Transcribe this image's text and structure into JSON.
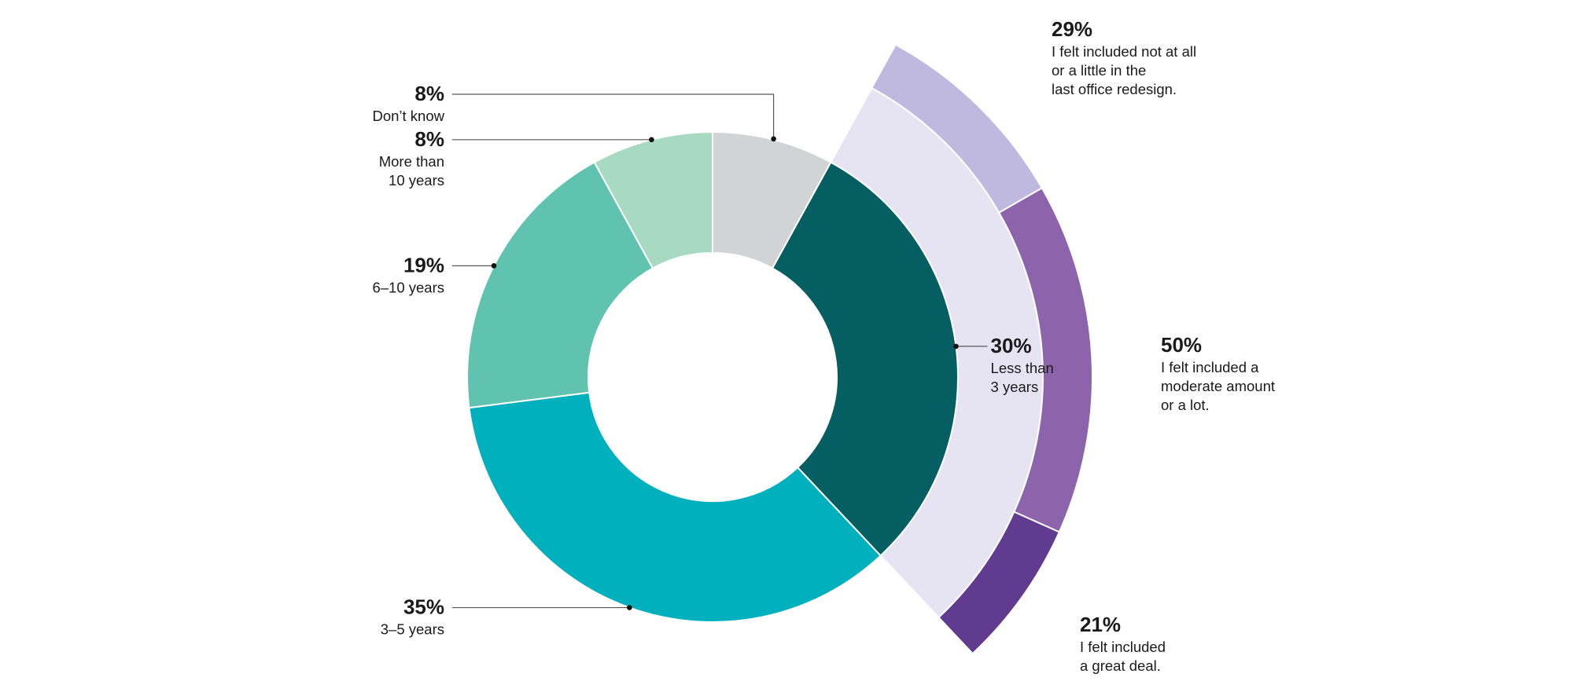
{
  "chart_data": {
    "type": "pie",
    "title": "",
    "inner_ring": {
      "slices": [
        {
          "key": "dont_know",
          "value": 8,
          "pct_label": "8%",
          "label_lines": [
            "Don’t know"
          ],
          "color": "#d1d3d4"
        },
        {
          "key": "lt3",
          "value": 30,
          "pct_label": "30%",
          "label_lines": [
            "Less than",
            "3 years"
          ],
          "color": "#055e62"
        },
        {
          "key": "y3_5",
          "value": 35,
          "pct_label": "35%",
          "label_lines": [
            "3–5 years"
          ],
          "color": "#00b0bd"
        },
        {
          "key": "y6_10",
          "value": 19,
          "pct_label": "19%",
          "label_lines": [
            "6–10 years"
          ],
          "color": "#5fc3b0"
        },
        {
          "key": "gt10",
          "value": 8,
          "pct_label": "8%",
          "label_lines": [
            "More than",
            "10 years"
          ],
          "color": "#a8dac2"
        }
      ]
    },
    "outer_ring": {
      "parent": "lt3",
      "background_color": "#e6e4f3",
      "slices": [
        {
          "key": "not_at_all",
          "value": 29,
          "pct_label": "29%",
          "label_lines": [
            "I felt included not at all",
            "or a little in the",
            "last office redesign."
          ],
          "color": "#c0b9df"
        },
        {
          "key": "moderate",
          "value": 50,
          "pct_label": "50%",
          "label_lines": [
            "I felt included a",
            "moderate amount",
            "or a lot."
          ],
          "color": "#8d64ab"
        },
        {
          "key": "great_deal",
          "value": 21,
          "pct_label": "21%",
          "label_lines": [
            "I felt included",
            "a great deal."
          ],
          "color": "#603b90"
        }
      ]
    }
  }
}
